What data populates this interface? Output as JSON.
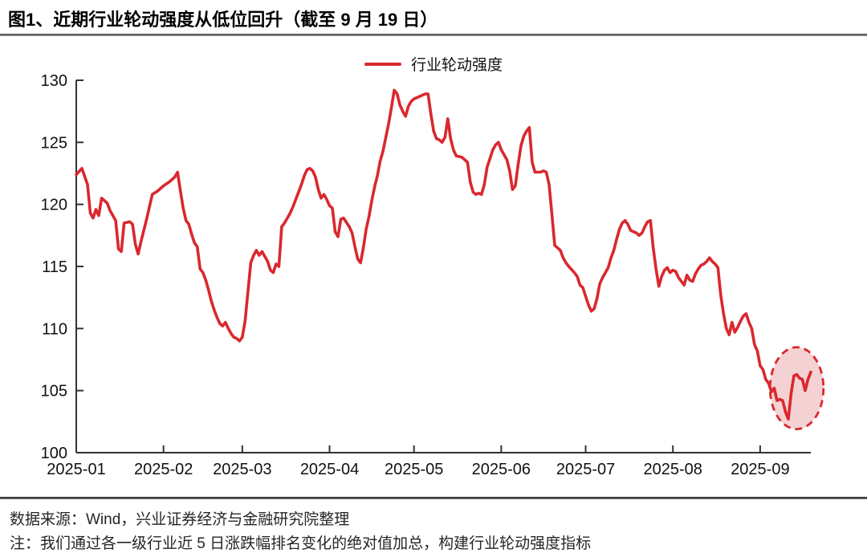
{
  "header": {
    "title": "图1、近期行业轮动强度从低位回升（截至 9 月 19 日）"
  },
  "footer": {
    "source": "数据来源：Wind，兴业证券经济与金融研究院整理",
    "note": "注：我们通过各一级行业近 5 日涨跌幅排名变化的绝对值加总，构建行业轮动强度指标"
  },
  "chart_data": {
    "type": "line",
    "title": "图1、近期行业轮动强度从低位回升（截至 9 月 19 日）",
    "xlabel": "",
    "ylabel": "",
    "ylim": [
      100,
      130
    ],
    "y_ticks": [
      100,
      105,
      110,
      115,
      120,
      125,
      130
    ],
    "x_ticks": [
      "2025-01",
      "2025-02",
      "2025-03",
      "2025-04",
      "2025-05",
      "2025-06",
      "2025-07",
      "2025-08",
      "2025-09"
    ],
    "x_range": [
      "2025-01-01",
      "2025-09-19"
    ],
    "grid": false,
    "legend_position": "top-center",
    "axis_color": "#333333",
    "tick_label_color": "#111111",
    "series": [
      {
        "name": "行业轮动强度",
        "color": "#d9282e",
        "points": [
          [
            "2025-01-01",
            122.4
          ],
          [
            "2025-01-03",
            122.9
          ],
          [
            "2025-01-05",
            121.6
          ],
          [
            "2025-01-06",
            119.3
          ],
          [
            "2025-01-07",
            118.9
          ],
          [
            "2025-01-08",
            119.6
          ],
          [
            "2025-01-09",
            119.1
          ],
          [
            "2025-01-10",
            120.5
          ],
          [
            "2025-01-12",
            120.1
          ],
          [
            "2025-01-13",
            119.5
          ],
          [
            "2025-01-14",
            119.1
          ],
          [
            "2025-01-15",
            118.7
          ],
          [
            "2025-01-16",
            116.4
          ],
          [
            "2025-01-17",
            116.2
          ],
          [
            "2025-01-18",
            118.5
          ],
          [
            "2025-01-20",
            118.6
          ],
          [
            "2025-01-21",
            118.4
          ],
          [
            "2025-01-22",
            116.8
          ],
          [
            "2025-01-23",
            116.0
          ],
          [
            "2025-01-24",
            117.0
          ],
          [
            "2025-01-26",
            118.8
          ],
          [
            "2025-01-28",
            120.8
          ],
          [
            "2025-01-30",
            121.1
          ],
          [
            "2025-02-01",
            121.5
          ],
          [
            "2025-02-03",
            121.8
          ],
          [
            "2025-02-05",
            122.2
          ],
          [
            "2025-02-06",
            122.6
          ],
          [
            "2025-02-07",
            121.1
          ],
          [
            "2025-02-08",
            119.7
          ],
          [
            "2025-02-09",
            118.7
          ],
          [
            "2025-02-10",
            118.4
          ],
          [
            "2025-02-11",
            117.6
          ],
          [
            "2025-02-12",
            116.9
          ],
          [
            "2025-02-13",
            116.6
          ],
          [
            "2025-02-14",
            114.8
          ],
          [
            "2025-02-15",
            114.5
          ],
          [
            "2025-02-16",
            113.9
          ],
          [
            "2025-02-17",
            113.1
          ],
          [
            "2025-02-18",
            112.2
          ],
          [
            "2025-02-19",
            111.5
          ],
          [
            "2025-02-20",
            110.9
          ],
          [
            "2025-02-21",
            110.4
          ],
          [
            "2025-02-22",
            110.2
          ],
          [
            "2025-02-23",
            110.5
          ],
          [
            "2025-02-24",
            110.0
          ],
          [
            "2025-02-25",
            109.6
          ],
          [
            "2025-02-26",
            109.3
          ],
          [
            "2025-02-27",
            109.2
          ],
          [
            "2025-02-28",
            109.0
          ],
          [
            "2025-03-01",
            109.3
          ],
          [
            "2025-03-02",
            110.6
          ],
          [
            "2025-03-03",
            113.0
          ],
          [
            "2025-03-04",
            115.3
          ],
          [
            "2025-03-05",
            115.9
          ],
          [
            "2025-03-06",
            116.3
          ],
          [
            "2025-03-07",
            115.9
          ],
          [
            "2025-03-08",
            116.2
          ],
          [
            "2025-03-09",
            115.8
          ],
          [
            "2025-03-10",
            115.4
          ],
          [
            "2025-03-11",
            114.7
          ],
          [
            "2025-03-12",
            114.5
          ],
          [
            "2025-03-13",
            115.2
          ],
          [
            "2025-03-14",
            115.0
          ],
          [
            "2025-03-15",
            118.2
          ],
          [
            "2025-03-16",
            118.5
          ],
          [
            "2025-03-17",
            118.9
          ],
          [
            "2025-03-18",
            119.3
          ],
          [
            "2025-03-19",
            119.8
          ],
          [
            "2025-03-20",
            120.4
          ],
          [
            "2025-03-21",
            121.0
          ],
          [
            "2025-03-22",
            121.6
          ],
          [
            "2025-03-23",
            122.3
          ],
          [
            "2025-03-24",
            122.8
          ],
          [
            "2025-03-25",
            122.9
          ],
          [
            "2025-03-26",
            122.7
          ],
          [
            "2025-03-27",
            122.2
          ],
          [
            "2025-03-28",
            121.2
          ],
          [
            "2025-03-29",
            120.5
          ],
          [
            "2025-03-30",
            120.8
          ],
          [
            "2025-03-31",
            120.4
          ],
          [
            "2025-04-01",
            119.9
          ],
          [
            "2025-04-02",
            119.7
          ],
          [
            "2025-04-03",
            117.8
          ],
          [
            "2025-04-04",
            117.4
          ],
          [
            "2025-04-05",
            118.8
          ],
          [
            "2025-04-06",
            118.9
          ],
          [
            "2025-04-08",
            118.2
          ],
          [
            "2025-04-09",
            117.7
          ],
          [
            "2025-04-10",
            116.6
          ],
          [
            "2025-04-11",
            115.6
          ],
          [
            "2025-04-12",
            115.3
          ],
          [
            "2025-04-13",
            116.5
          ],
          [
            "2025-04-14",
            118.0
          ],
          [
            "2025-04-15",
            119.0
          ],
          [
            "2025-04-16",
            120.3
          ],
          [
            "2025-04-17",
            121.4
          ],
          [
            "2025-04-18",
            122.3
          ],
          [
            "2025-04-19",
            123.5
          ],
          [
            "2025-04-20",
            124.3
          ],
          [
            "2025-04-21",
            125.4
          ],
          [
            "2025-04-22",
            126.5
          ],
          [
            "2025-04-23",
            127.8
          ],
          [
            "2025-04-24",
            129.2
          ],
          [
            "2025-04-25",
            128.9
          ],
          [
            "2025-04-26",
            128.0
          ],
          [
            "2025-04-27",
            127.5
          ],
          [
            "2025-04-28",
            127.1
          ],
          [
            "2025-04-29",
            127.9
          ],
          [
            "2025-04-30",
            128.3
          ],
          [
            "2025-05-01",
            128.5
          ],
          [
            "2025-05-03",
            128.7
          ],
          [
            "2025-05-05",
            128.9
          ],
          [
            "2025-05-06",
            128.9
          ],
          [
            "2025-05-07",
            127.3
          ],
          [
            "2025-05-08",
            125.9
          ],
          [
            "2025-05-09",
            125.3
          ],
          [
            "2025-05-10",
            125.2
          ],
          [
            "2025-05-11",
            125.0
          ],
          [
            "2025-05-12",
            125.4
          ],
          [
            "2025-05-13",
            126.9
          ],
          [
            "2025-05-14",
            125.3
          ],
          [
            "2025-05-15",
            124.4
          ],
          [
            "2025-05-16",
            123.9
          ],
          [
            "2025-05-18",
            123.8
          ],
          [
            "2025-05-19",
            123.6
          ],
          [
            "2025-05-20",
            123.4
          ],
          [
            "2025-05-21",
            121.8
          ],
          [
            "2025-05-22",
            121.0
          ],
          [
            "2025-05-23",
            120.8
          ],
          [
            "2025-05-24",
            120.9
          ],
          [
            "2025-05-25",
            120.8
          ],
          [
            "2025-05-26",
            121.6
          ],
          [
            "2025-05-27",
            123.0
          ],
          [
            "2025-05-29",
            124.4
          ],
          [
            "2025-05-30",
            124.8
          ],
          [
            "2025-05-31",
            125.0
          ],
          [
            "2025-06-01",
            124.4
          ],
          [
            "2025-06-02",
            124.0
          ],
          [
            "2025-06-03",
            123.6
          ],
          [
            "2025-06-04",
            122.7
          ],
          [
            "2025-06-05",
            121.2
          ],
          [
            "2025-06-06",
            121.5
          ],
          [
            "2025-06-07",
            123.2
          ],
          [
            "2025-06-08",
            124.7
          ],
          [
            "2025-06-09",
            125.5
          ],
          [
            "2025-06-10",
            125.9
          ],
          [
            "2025-06-11",
            126.2
          ],
          [
            "2025-06-12",
            123.4
          ],
          [
            "2025-06-13",
            122.6
          ],
          [
            "2025-06-15",
            122.6
          ],
          [
            "2025-06-16",
            122.7
          ],
          [
            "2025-06-17",
            122.6
          ],
          [
            "2025-06-18",
            121.6
          ],
          [
            "2025-06-19",
            119.2
          ],
          [
            "2025-06-20",
            116.7
          ],
          [
            "2025-06-21",
            116.5
          ],
          [
            "2025-06-22",
            116.3
          ],
          [
            "2025-06-23",
            115.7
          ],
          [
            "2025-06-24",
            115.3
          ],
          [
            "2025-06-25",
            115.0
          ],
          [
            "2025-06-27",
            114.5
          ],
          [
            "2025-06-28",
            114.2
          ],
          [
            "2025-06-29",
            113.5
          ],
          [
            "2025-06-30",
            113.3
          ],
          [
            "2025-07-01",
            112.6
          ],
          [
            "2025-07-02",
            111.9
          ],
          [
            "2025-07-03",
            111.4
          ],
          [
            "2025-07-04",
            111.6
          ],
          [
            "2025-07-05",
            112.4
          ],
          [
            "2025-07-06",
            113.6
          ],
          [
            "2025-07-07",
            114.1
          ],
          [
            "2025-07-08",
            114.5
          ],
          [
            "2025-07-09",
            114.9
          ],
          [
            "2025-07-10",
            115.7
          ],
          [
            "2025-07-11",
            116.3
          ],
          [
            "2025-07-12",
            117.2
          ],
          [
            "2025-07-13",
            118.0
          ],
          [
            "2025-07-14",
            118.5
          ],
          [
            "2025-07-15",
            118.7
          ],
          [
            "2025-07-16",
            118.4
          ],
          [
            "2025-07-17",
            117.9
          ],
          [
            "2025-07-18",
            117.8
          ],
          [
            "2025-07-19",
            117.7
          ],
          [
            "2025-07-20",
            117.5
          ],
          [
            "2025-07-21",
            117.7
          ],
          [
            "2025-07-22",
            118.2
          ],
          [
            "2025-07-23",
            118.6
          ],
          [
            "2025-07-24",
            118.7
          ],
          [
            "2025-07-25",
            116.5
          ],
          [
            "2025-07-26",
            114.8
          ],
          [
            "2025-07-27",
            113.4
          ],
          [
            "2025-07-28",
            114.2
          ],
          [
            "2025-07-29",
            114.7
          ],
          [
            "2025-07-30",
            114.9
          ],
          [
            "2025-07-31",
            114.5
          ],
          [
            "2025-08-01",
            114.7
          ],
          [
            "2025-08-02",
            114.6
          ],
          [
            "2025-08-03",
            114.1
          ],
          [
            "2025-08-04",
            113.8
          ],
          [
            "2025-08-05",
            113.5
          ],
          [
            "2025-08-06",
            114.3
          ],
          [
            "2025-08-07",
            113.9
          ],
          [
            "2025-08-08",
            113.8
          ],
          [
            "2025-08-09",
            114.4
          ],
          [
            "2025-08-10",
            114.8
          ],
          [
            "2025-08-11",
            115.1
          ],
          [
            "2025-08-12",
            115.2
          ],
          [
            "2025-08-13",
            115.4
          ],
          [
            "2025-08-14",
            115.7
          ],
          [
            "2025-08-15",
            115.4
          ],
          [
            "2025-08-16",
            115.2
          ],
          [
            "2025-08-17",
            114.9
          ],
          [
            "2025-08-18",
            112.7
          ],
          [
            "2025-08-19",
            111.2
          ],
          [
            "2025-08-20",
            110.0
          ],
          [
            "2025-08-21",
            109.5
          ],
          [
            "2025-08-22",
            110.5
          ],
          [
            "2025-08-23",
            109.7
          ],
          [
            "2025-08-24",
            110.1
          ],
          [
            "2025-08-25",
            110.6
          ],
          [
            "2025-08-26",
            111.0
          ],
          [
            "2025-08-27",
            111.2
          ],
          [
            "2025-08-28",
            110.5
          ],
          [
            "2025-08-29",
            110.0
          ],
          [
            "2025-08-30",
            108.7
          ],
          [
            "2025-08-31",
            108.2
          ],
          [
            "2025-09-01",
            107.0
          ],
          [
            "2025-09-02",
            106.7
          ],
          [
            "2025-09-03",
            105.9
          ],
          [
            "2025-09-04",
            105.6
          ],
          [
            "2025-09-05",
            104.9
          ],
          [
            "2025-09-06",
            105.2
          ],
          [
            "2025-09-07",
            104.2
          ],
          [
            "2025-09-08",
            104.3
          ],
          [
            "2025-09-09",
            104.2
          ],
          [
            "2025-09-10",
            103.3
          ],
          [
            "2025-09-11",
            102.7
          ],
          [
            "2025-09-12",
            104.8
          ],
          [
            "2025-09-13",
            106.2
          ],
          [
            "2025-09-14",
            106.3
          ],
          [
            "2025-09-15",
            106.0
          ],
          [
            "2025-09-16",
            105.9
          ],
          [
            "2025-09-17",
            105.0
          ],
          [
            "2025-09-18",
            105.9
          ],
          [
            "2025-09-19",
            106.5
          ]
        ]
      }
    ],
    "annotations": [
      {
        "type": "ellipse",
        "style": "dashed",
        "center_date": "2025-09-14",
        "center_value": 105.2,
        "radius_days": 9.5,
        "radius_value": 3.3,
        "stroke": "#d9282e",
        "fill": "#f4d2d3"
      }
    ]
  }
}
